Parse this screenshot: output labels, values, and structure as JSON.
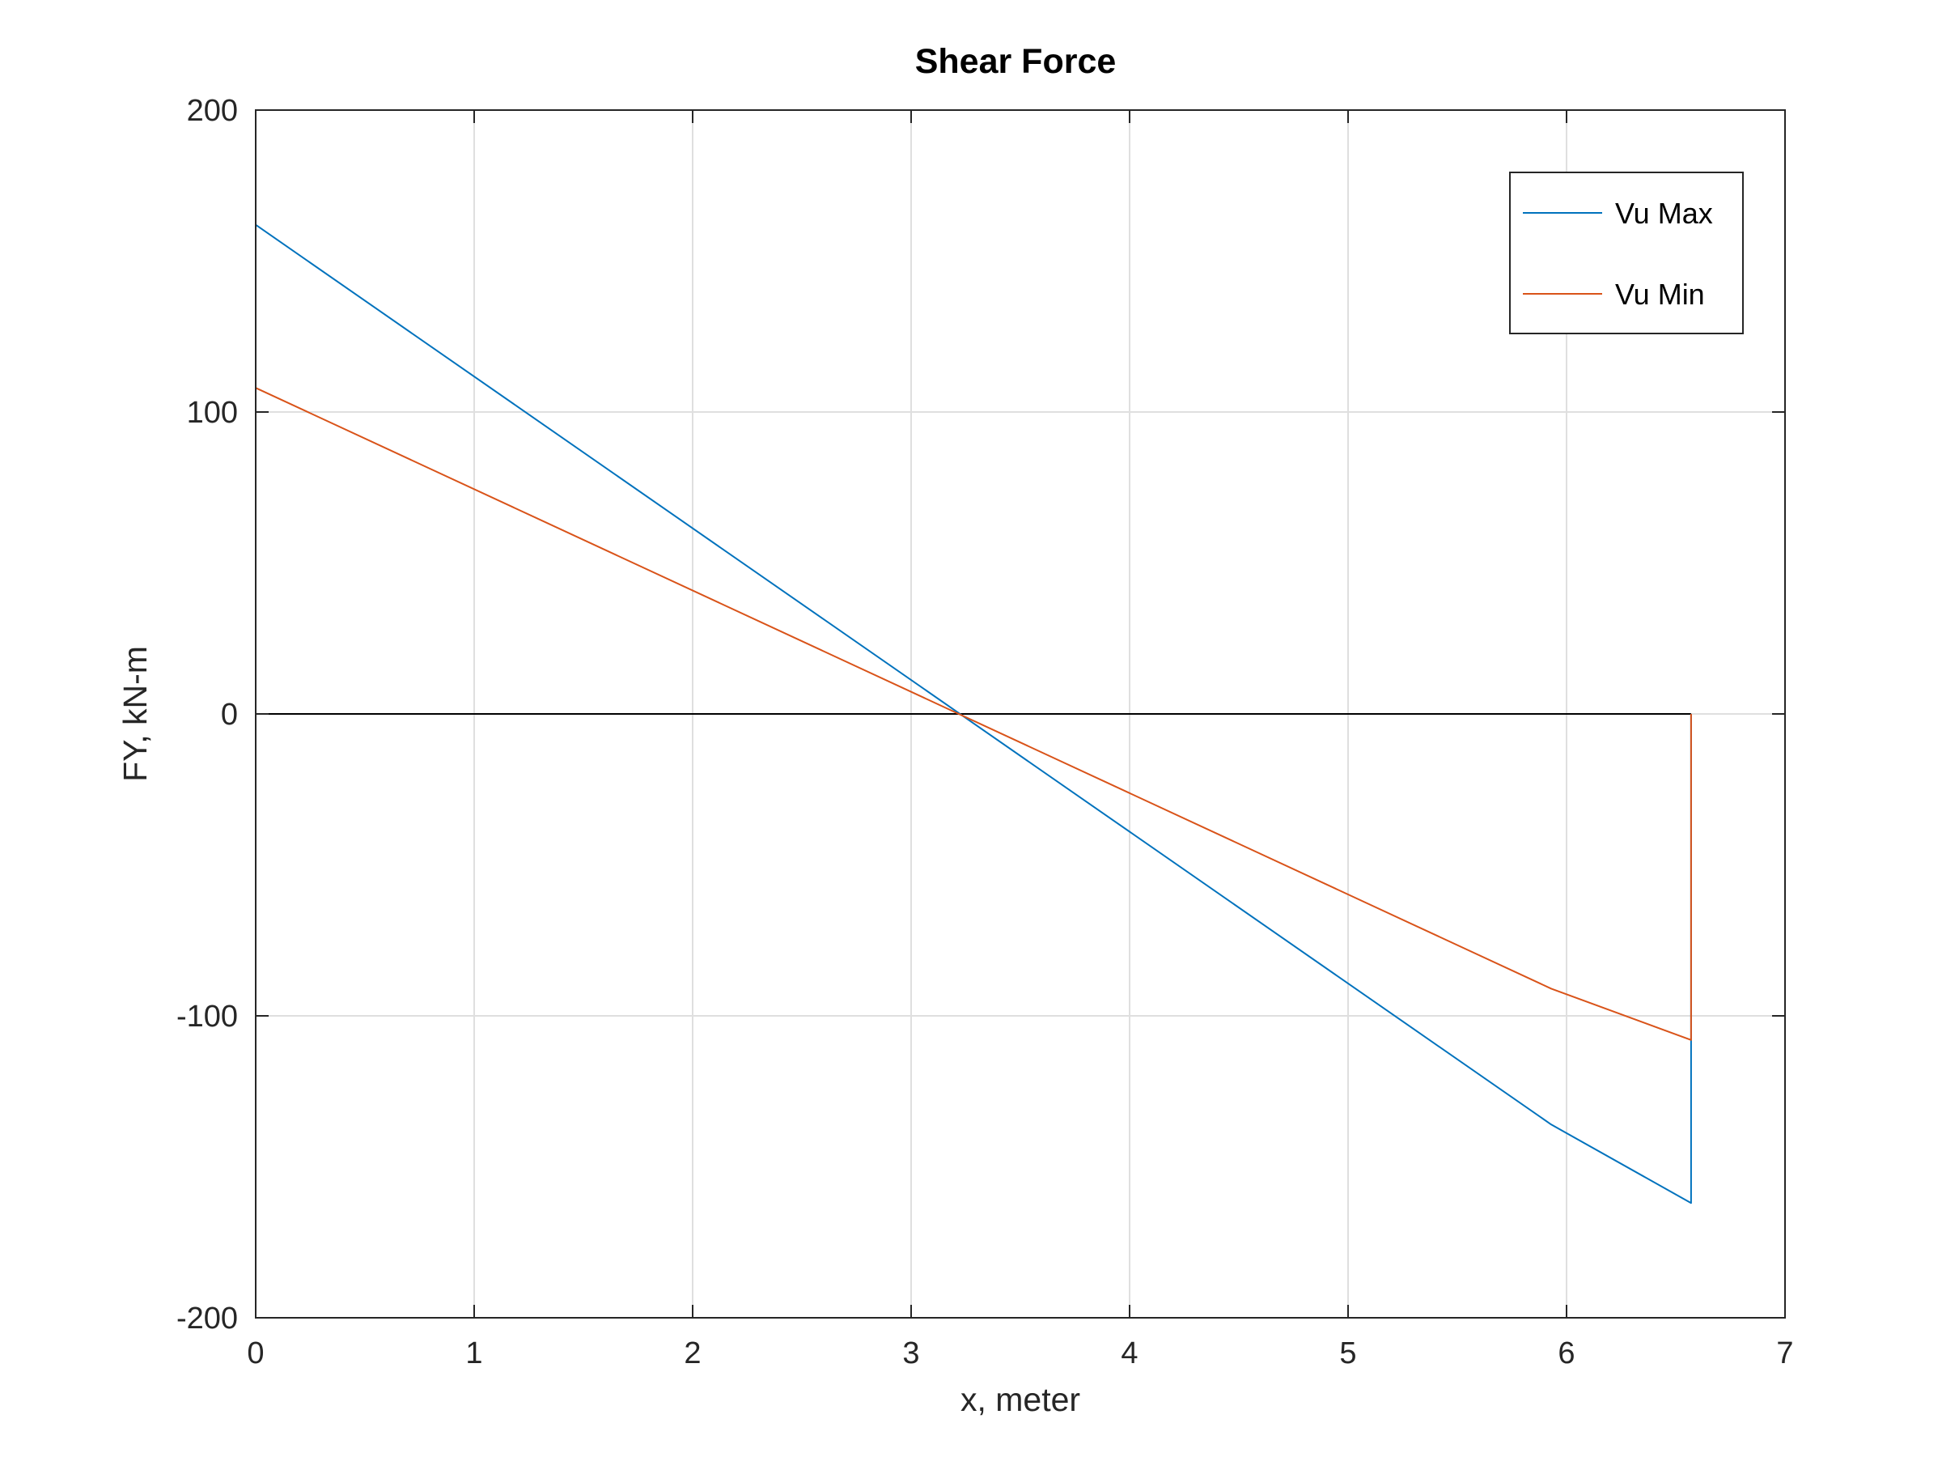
{
  "chart_data": {
    "type": "line",
    "title": "Shear Force",
    "xlabel": "x, meter",
    "ylabel": "FY, kN-m",
    "xlim": [
      0,
      7
    ],
    "ylim": [
      -200,
      200
    ],
    "x_ticks": [
      0,
      1,
      2,
      3,
      4,
      5,
      6,
      7
    ],
    "y_ticks": [
      -200,
      -100,
      0,
      100,
      200
    ],
    "x_tick_labels": [
      "0",
      "1",
      "2",
      "3",
      "4",
      "5",
      "6",
      "7"
    ],
    "y_tick_labels": [
      "-200",
      "-100",
      "0",
      "100",
      "200"
    ],
    "grid": true,
    "legend_position": "top-right",
    "baseline": {
      "x": [
        0,
        6.57
      ],
      "y": [
        0,
        0
      ],
      "color": "#000000"
    },
    "series": [
      {
        "name": "Vu Max",
        "color": "#0072BD",
        "x": [
          0,
          0,
          5.93,
          6.57,
          6.57
        ],
        "y": [
          0,
          162,
          -136,
          -162,
          0
        ]
      },
      {
        "name": "Vu Min",
        "color": "#D95319",
        "x": [
          0,
          0,
          5.93,
          6.57,
          6.57
        ],
        "y": [
          0,
          108,
          -91,
          -108,
          0
        ]
      }
    ]
  }
}
